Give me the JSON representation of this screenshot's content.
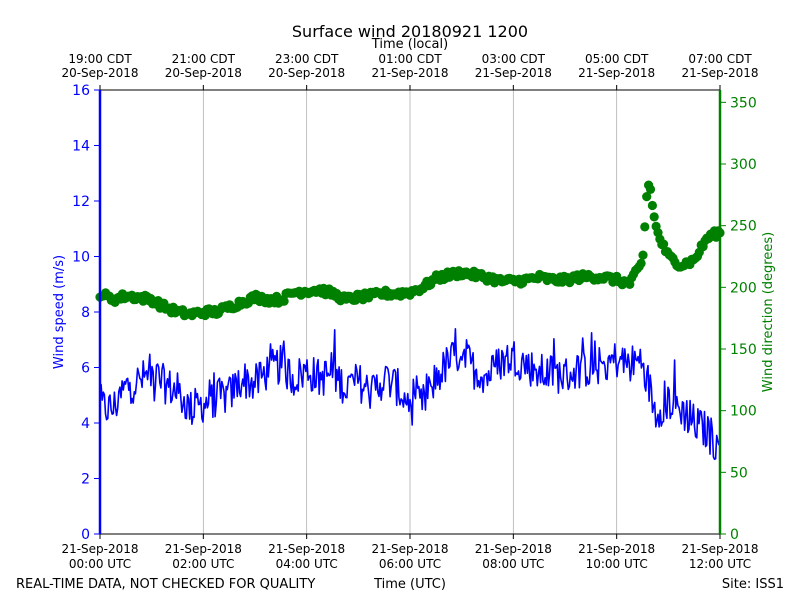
{
  "chart_data": {
    "type": "line",
    "title": "Surface wind 20180921 1200",
    "top_xlabel": "Time (local)",
    "bottom_xlabel": "Time (UTC)",
    "ylabel_left": "Wind speed (m/s)",
    "ylabel_right": "Wind direction (degrees)",
    "footer_left": "REAL-TIME DATA, NOT CHECKED FOR QUALITY",
    "footer_right": "Site: ISS1",
    "x_range_hours_utc": [
      0,
      12
    ],
    "ylim_left": [
      0,
      16
    ],
    "ylim_right": [
      0,
      360
    ],
    "grid": "vertical",
    "yticks_left": [
      0,
      2,
      4,
      6,
      8,
      10,
      12,
      14,
      16
    ],
    "yticks_right": [
      0,
      50,
      100,
      150,
      200,
      250,
      300,
      350
    ],
    "xticks_bottom": [
      {
        "hour": 0,
        "line1": "21-Sep-2018",
        "line2": "00:00 UTC"
      },
      {
        "hour": 2,
        "line1": "21-Sep-2018",
        "line2": "02:00 UTC"
      },
      {
        "hour": 4,
        "line1": "21-Sep-2018",
        "line2": "04:00 UTC"
      },
      {
        "hour": 6,
        "line1": "21-Sep-2018",
        "line2": "06:00 UTC"
      },
      {
        "hour": 8,
        "line1": "21-Sep-2018",
        "line2": "08:00 UTC"
      },
      {
        "hour": 10,
        "line1": "21-Sep-2018",
        "line2": "10:00 UTC"
      },
      {
        "hour": 12,
        "line1": "21-Sep-2018",
        "line2": "12:00 UTC"
      }
    ],
    "xticks_top": [
      {
        "hour": 0,
        "line1": "19:00 CDT",
        "line2": "20-Sep-2018"
      },
      {
        "hour": 2,
        "line1": "21:00 CDT",
        "line2": "20-Sep-2018"
      },
      {
        "hour": 4,
        "line1": "23:00 CDT",
        "line2": "20-Sep-2018"
      },
      {
        "hour": 6,
        "line1": "01:00 CDT",
        "line2": "21-Sep-2018"
      },
      {
        "hour": 8,
        "line1": "03:00 CDT",
        "line2": "21-Sep-2018"
      },
      {
        "hour": 10,
        "line1": "05:00 CDT",
        "line2": "21-Sep-2018"
      },
      {
        "hour": 12,
        "line1": "07:00 CDT",
        "line2": "21-Sep-2018"
      }
    ],
    "series": [
      {
        "name": "Wind speed",
        "axis": "left",
        "style": "line",
        "color": "#0000ff",
        "x_hours": [
          0,
          0.25,
          0.5,
          0.75,
          1.0,
          1.25,
          1.5,
          1.75,
          2.0,
          2.25,
          2.5,
          2.75,
          3.0,
          3.25,
          3.5,
          3.75,
          4.0,
          4.25,
          4.5,
          4.75,
          5.0,
          5.25,
          5.5,
          5.75,
          6.0,
          6.25,
          6.5,
          6.75,
          7.0,
          7.25,
          7.5,
          7.75,
          8.0,
          8.25,
          8.5,
          8.75,
          9.0,
          9.25,
          9.5,
          9.75,
          10.0,
          10.25,
          10.5,
          10.75,
          11.0,
          11.25,
          11.5,
          11.75,
          12.0
        ],
        "values": [
          4.6,
          4.5,
          5.3,
          5.5,
          5.8,
          5.4,
          5.1,
          4.5,
          4.7,
          4.9,
          5.0,
          5.6,
          5.4,
          5.9,
          6.1,
          5.6,
          5.9,
          5.6,
          5.8,
          5.3,
          5.5,
          5.1,
          5.6,
          5.3,
          4.6,
          4.7,
          5.6,
          6.2,
          6.6,
          5.9,
          5.7,
          6.2,
          6.4,
          6.1,
          5.8,
          5.8,
          5.7,
          5.9,
          6.0,
          6.1,
          6.3,
          6.1,
          6.3,
          4.4,
          4.8,
          4.5,
          4.0,
          3.7,
          3.0
        ]
      },
      {
        "name": "Wind direction",
        "axis": "right",
        "style": "markers",
        "color": "#008000",
        "x_hours": [
          0,
          0.25,
          0.5,
          0.75,
          1.0,
          1.25,
          1.5,
          1.75,
          2.0,
          2.25,
          2.5,
          2.75,
          3.0,
          3.25,
          3.5,
          3.75,
          4.0,
          4.25,
          4.5,
          4.75,
          5.0,
          5.25,
          5.5,
          5.75,
          6.0,
          6.25,
          6.5,
          6.75,
          7.0,
          7.25,
          7.5,
          7.75,
          8.0,
          8.25,
          8.5,
          8.75,
          9.0,
          9.25,
          9.5,
          9.75,
          10.0,
          10.25,
          10.5,
          10.6,
          10.65,
          10.7,
          10.75,
          10.85,
          11.0,
          11.25,
          11.5,
          11.75,
          12.0
        ],
        "values": [
          195,
          190,
          193,
          192,
          190,
          184,
          180,
          178,
          180,
          180,
          184,
          188,
          192,
          190,
          190,
          196,
          197,
          198,
          195,
          190,
          192,
          193,
          195,
          195,
          196,
          200,
          207,
          210,
          212,
          210,
          208,
          205,
          205,
          206,
          208,
          206,
          206,
          208,
          209,
          208,
          206,
          203,
          220,
          285,
          280,
          265,
          250,
          238,
          225,
          218,
          222,
          240,
          245
        ]
      }
    ]
  }
}
